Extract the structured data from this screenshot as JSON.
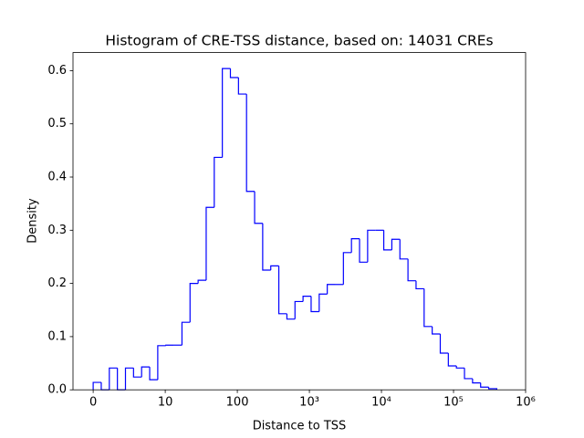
{
  "chart_data": {
    "type": "histogram",
    "title": "Histogram of CRE-TSS distance, based on: 14031 CREs",
    "x_label": "Distance to TSS",
    "y_label": "Density",
    "xscale": "symlog",
    "linthresh": 10,
    "color": "#0000ff",
    "bins": [
      0,
      1.12,
      2.24,
      3.36,
      4.48,
      5.6,
      6.72,
      7.84,
      8.96,
      10.19,
      13.18,
      17.06,
      22.08,
      28.58,
      36.98,
      47.86,
      61.94,
      80.17,
      103.8,
      134.3,
      173.8,
      224.9,
      291.1,
      376.7,
      487.5,
      631,
      816.6,
      1057,
      1368,
      1770,
      2291,
      2965,
      3837,
      4966,
      6427,
      8318,
      10765,
      13932,
      18030,
      23335,
      30200,
      39084,
      50582,
      65464,
      84723,
      109648,
      141906,
      183654,
      237684,
      307610,
      398107
    ],
    "values": [
      0.014,
      0,
      0.041,
      0,
      0.041,
      0.024,
      0.043,
      0.019,
      0.083,
      0.084,
      0.084,
      0.127,
      0.2,
      0.206,
      0.343,
      0.437,
      0.604,
      0.587,
      0.556,
      0.373,
      0.313,
      0.225,
      0.233,
      0.143,
      0.133,
      0.166,
      0.176,
      0.147,
      0.18,
      0.198,
      0.198,
      0.258,
      0.284,
      0.24,
      0.3,
      0.3,
      0.263,
      0.283,
      0.246,
      0.205,
      0.19,
      0.119,
      0.105,
      0.069,
      0.045,
      0.041,
      0.021,
      0.013,
      0.005,
      0.002
    ],
    "xlim": [
      -2.8,
      1000000
    ],
    "xticks": [
      0,
      10,
      100,
      {
        "value": 1000,
        "label": "10³"
      },
      {
        "value": 10000,
        "label": "10⁴"
      },
      {
        "value": 100000,
        "label": "10⁵"
      },
      {
        "value": 1000000,
        "label": "10⁶"
      }
    ],
    "ylim": [
      0,
      0.634
    ],
    "yticks": [
      {
        "value": 0,
        "label": "0.0"
      },
      0.1,
      0.2,
      0.3,
      0.4,
      0.5,
      0.6
    ]
  }
}
